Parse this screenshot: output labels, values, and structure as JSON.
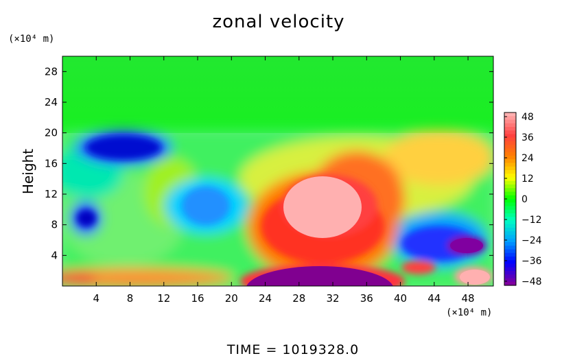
{
  "chart_data": {
    "type": "heatmap",
    "title": "zonal velocity",
    "ylabel": "Height",
    "y_unit_label": "(×10⁴ m)",
    "x_unit_label": "(×10⁴ m)",
    "footer": "TIME = 1019328.0",
    "xlim": [
      0,
      51
    ],
    "ylim": [
      0,
      30
    ],
    "x_ticks": [
      4,
      8,
      12,
      16,
      20,
      24,
      28,
      32,
      36,
      40,
      44,
      48
    ],
    "y_ticks": [
      4,
      8,
      12,
      16,
      20,
      24,
      28
    ],
    "colorbar": {
      "min": -48,
      "max": 48,
      "ticks": [
        48,
        36,
        24,
        12,
        0,
        -12,
        -24,
        -36,
        -48
      ],
      "colors": [
        "#ffb0b0",
        "#ff4040",
        "#ff8000",
        "#ffff00",
        "#00ff00",
        "#00ffc0",
        "#00a0ff",
        "#0000ff",
        "#8000a0"
      ]
    },
    "features": [
      {
        "x": 0,
        "y": 25,
        "value": 0
      },
      {
        "x": 30,
        "y": 10,
        "value": 48
      },
      {
        "x": 30,
        "y": 1,
        "value": -48
      },
      {
        "x": 8,
        "y": 18.5,
        "value": -36
      },
      {
        "x": 3,
        "y": 9,
        "value": -36
      },
      {
        "x": 18,
        "y": 10,
        "value": -24
      },
      {
        "x": 48,
        "y": 5,
        "value": -48
      },
      {
        "x": 48,
        "y": 1.5,
        "value": 48
      }
    ]
  }
}
